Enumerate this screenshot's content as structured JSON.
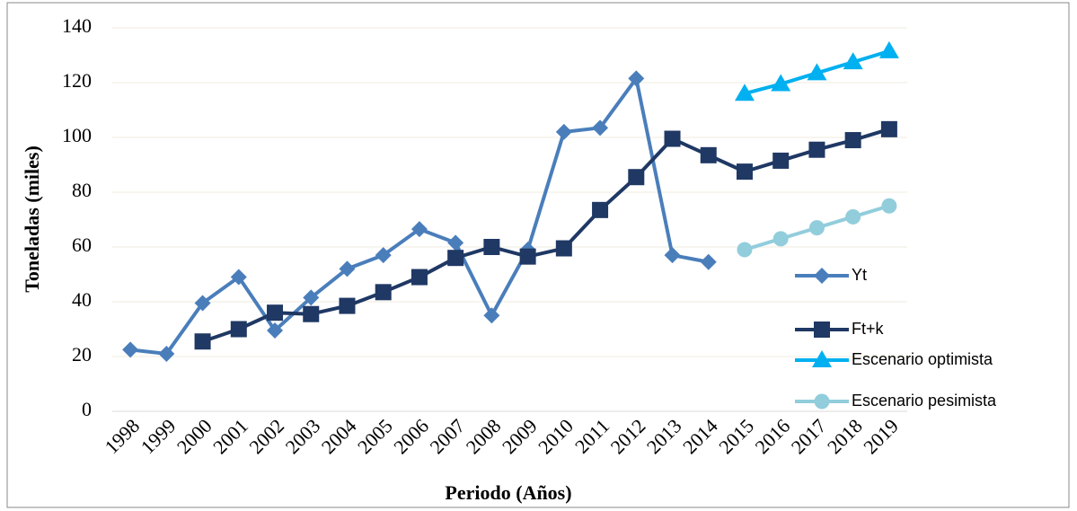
{
  "chart_data": {
    "type": "line",
    "x_label": "Periodo (Años)",
    "y_label": "Toneladas (miles)",
    "categories": [
      "1998",
      "1999",
      "2000",
      "2001",
      "2002",
      "2003",
      "2004",
      "2005",
      "2006",
      "2007",
      "2008",
      "2009",
      "2010",
      "2011",
      "2012",
      "2013",
      "2014",
      "2015",
      "2016",
      "2017",
      "2018",
      "2019"
    ],
    "series": [
      {
        "name": "Yt",
        "color": "#4a7ebb",
        "marker": "diamond",
        "values": [
          22.5,
          21,
          39.5,
          49,
          29.5,
          41.5,
          52,
          57,
          66.5,
          61.5,
          35,
          59,
          102,
          103.5,
          121.5,
          57,
          54.5,
          null,
          null,
          null,
          null,
          null
        ]
      },
      {
        "name": "Ft+k",
        "color": "#1f3864",
        "marker": "square",
        "values": [
          null,
          null,
          25.5,
          30,
          36,
          35.5,
          38.5,
          43.5,
          49,
          56,
          60,
          56.5,
          59.5,
          73.5,
          85.5,
          99.5,
          93.5,
          87.5,
          91.5,
          95.5,
          99,
          103
        ]
      },
      {
        "name": "Escenario optimista",
        "color": "#00b0f0",
        "marker": "triangle",
        "values": [
          null,
          null,
          null,
          null,
          null,
          null,
          null,
          null,
          null,
          null,
          null,
          null,
          null,
          null,
          null,
          null,
          null,
          116,
          119.5,
          123.5,
          127.5,
          131.5
        ]
      },
      {
        "name": "Escenario pesimista",
        "color": "#92cddc",
        "marker": "circle",
        "values": [
          null,
          null,
          null,
          null,
          null,
          null,
          null,
          null,
          null,
          null,
          null,
          null,
          null,
          null,
          null,
          null,
          null,
          59,
          63,
          67,
          71,
          75
        ]
      }
    ],
    "ylim": [
      0,
      140
    ],
    "yticks": [
      0,
      20,
      40,
      60,
      80,
      100,
      120,
      140
    ],
    "grid": true
  }
}
